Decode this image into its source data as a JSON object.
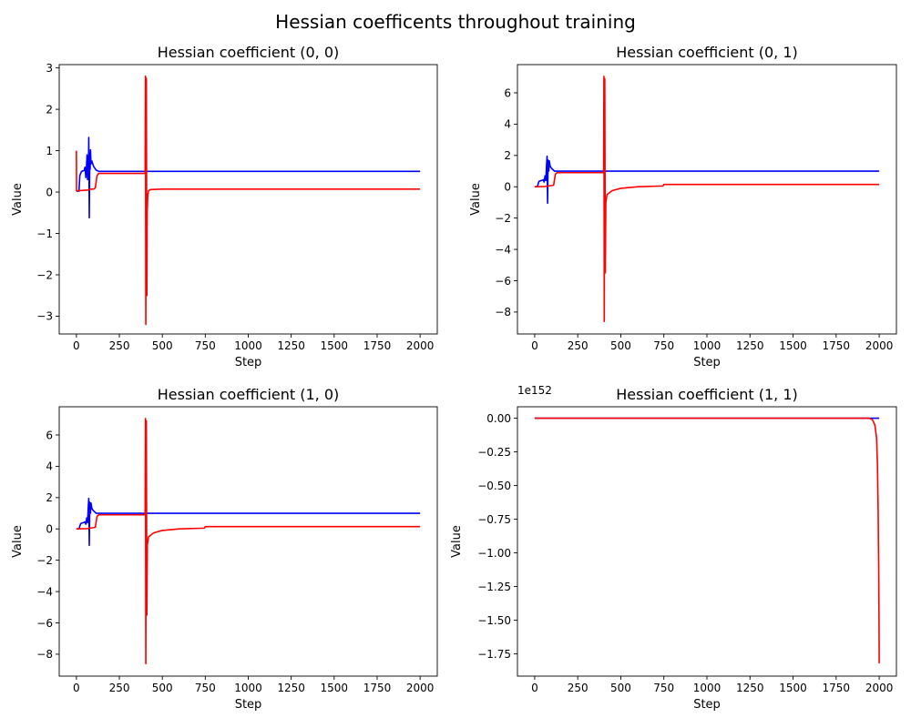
{
  "figure": {
    "suptitle": "Hessian coefficents throughout training"
  },
  "chart_data": [
    {
      "type": "line",
      "title": "Hessian coefficient (0, 0)",
      "xlabel": "Step",
      "ylabel": "Value",
      "offset_text": "",
      "xlim": [
        -100,
        2100
      ],
      "ylim": [
        -3.43,
        3.08
      ],
      "xticks": [
        0,
        250,
        500,
        750,
        1000,
        1250,
        1500,
        1750,
        2000
      ],
      "xtick_labels": [
        "0",
        "250",
        "500",
        "750",
        "1000",
        "1250",
        "1500",
        "1750",
        "2000"
      ],
      "yticks": [
        -3,
        -2,
        -1,
        0,
        1,
        2,
        3
      ],
      "ytick_labels": [
        "−3",
        "−2",
        "−1",
        "0",
        "1",
        "2",
        "3"
      ],
      "series": [
        {
          "color": "#0000ff",
          "points": [
            [
              0,
              0.02
            ],
            [
              15,
              0.02
            ],
            [
              20,
              0.4
            ],
            [
              30,
              0.5
            ],
            [
              45,
              0.52
            ],
            [
              50,
              0.6
            ],
            [
              55,
              0.35
            ],
            [
              58,
              0.55
            ],
            [
              62,
              0.9
            ],
            [
              65,
              0.3
            ],
            [
              68,
              0.75
            ],
            [
              70,
              0.5
            ],
            [
              72,
              1.32
            ],
            [
              75,
              -0.62
            ],
            [
              78,
              0.95
            ],
            [
              80,
              0.55
            ],
            [
              82,
              1.02
            ],
            [
              85,
              0.68
            ],
            [
              90,
              0.75
            ],
            [
              100,
              0.62
            ],
            [
              115,
              0.53
            ],
            [
              130,
              0.5
            ],
            [
              200,
              0.5
            ],
            [
              400,
              0.5
            ],
            [
              2000,
              0.5
            ]
          ]
        },
        {
          "color": "#ff0000",
          "points": [
            [
              0,
              1.0
            ],
            [
              1,
              0.03
            ],
            [
              70,
              0.05
            ],
            [
              80,
              0.07
            ],
            [
              100,
              0.07
            ],
            [
              110,
              0.1
            ],
            [
              120,
              0.4
            ],
            [
              130,
              0.45
            ],
            [
              300,
              0.45
            ],
            [
              400,
              0.45
            ],
            [
              402,
              2.8
            ],
            [
              404,
              -3.2
            ],
            [
              407,
              2.75
            ],
            [
              410,
              -2.5
            ],
            [
              412,
              -0.5
            ],
            [
              415,
              -0.1
            ],
            [
              420,
              0.03
            ],
            [
              430,
              0.06
            ],
            [
              500,
              0.07
            ],
            [
              2000,
              0.07
            ]
          ]
        }
      ]
    },
    {
      "type": "line",
      "title": "Hessian coefficient (0, 1)",
      "xlabel": "Step",
      "ylabel": "Value",
      "offset_text": "",
      "xlim": [
        -100,
        2100
      ],
      "ylim": [
        -9.4,
        7.8
      ],
      "xticks": [
        0,
        250,
        500,
        750,
        1000,
        1250,
        1500,
        1750,
        2000
      ],
      "xtick_labels": [
        "0",
        "250",
        "500",
        "750",
        "1000",
        "1250",
        "1500",
        "1750",
        "2000"
      ],
      "yticks": [
        -8,
        -6,
        -4,
        -2,
        0,
        2,
        4,
        6
      ],
      "ytick_labels": [
        "−8",
        "−6",
        "−4",
        "−2",
        "0",
        "2",
        "4",
        "6"
      ],
      "series": [
        {
          "color": "#0000ff",
          "points": [
            [
              0,
              0.0
            ],
            [
              15,
              0.0
            ],
            [
              25,
              0.35
            ],
            [
              40,
              0.4
            ],
            [
              50,
              0.45
            ],
            [
              55,
              0.3
            ],
            [
              60,
              0.7
            ],
            [
              65,
              0.4
            ],
            [
              68,
              1.2
            ],
            [
              72,
              1.95
            ],
            [
              75,
              -1.05
            ],
            [
              78,
              1.7
            ],
            [
              82,
              1.0
            ],
            [
              85,
              1.65
            ],
            [
              90,
              1.3
            ],
            [
              100,
              1.15
            ],
            [
              115,
              1.0
            ],
            [
              200,
              1.0
            ],
            [
              400,
              1.0
            ],
            [
              2000,
              1.0
            ]
          ]
        },
        {
          "color": "#ff0000",
          "points": [
            [
              0,
              0.0
            ],
            [
              60,
              0.02
            ],
            [
              80,
              0.05
            ],
            [
              110,
              0.1
            ],
            [
              120,
              0.8
            ],
            [
              130,
              0.9
            ],
            [
              400,
              0.9
            ],
            [
              402,
              7.05
            ],
            [
              404,
              -8.6
            ],
            [
              407,
              6.9
            ],
            [
              410,
              -5.5
            ],
            [
              413,
              -1.0
            ],
            [
              420,
              -0.5
            ],
            [
              450,
              -0.25
            ],
            [
              500,
              -0.1
            ],
            [
              600,
              0.0
            ],
            [
              745,
              0.05
            ],
            [
              750,
              0.15
            ],
            [
              1000,
              0.15
            ],
            [
              2000,
              0.15
            ]
          ]
        }
      ]
    },
    {
      "type": "line",
      "title": "Hessian coefficient (1, 0)",
      "xlabel": "Step",
      "ylabel": "Value",
      "offset_text": "",
      "xlim": [
        -100,
        2100
      ],
      "ylim": [
        -9.4,
        7.8
      ],
      "xticks": [
        0,
        250,
        500,
        750,
        1000,
        1250,
        1500,
        1750,
        2000
      ],
      "xtick_labels": [
        "0",
        "250",
        "500",
        "750",
        "1000",
        "1250",
        "1500",
        "1750",
        "2000"
      ],
      "yticks": [
        -8,
        -6,
        -4,
        -2,
        0,
        2,
        4,
        6
      ],
      "ytick_labels": [
        "−8",
        "−6",
        "−4",
        "−2",
        "0",
        "2",
        "4",
        "6"
      ],
      "series": [
        {
          "color": "#0000ff",
          "points": [
            [
              0,
              0.0
            ],
            [
              15,
              0.0
            ],
            [
              25,
              0.35
            ],
            [
              40,
              0.4
            ],
            [
              50,
              0.45
            ],
            [
              55,
              0.3
            ],
            [
              60,
              0.7
            ],
            [
              65,
              0.4
            ],
            [
              68,
              1.2
            ],
            [
              72,
              1.95
            ],
            [
              75,
              -1.05
            ],
            [
              78,
              1.7
            ],
            [
              82,
              1.0
            ],
            [
              85,
              1.65
            ],
            [
              90,
              1.3
            ],
            [
              100,
              1.15
            ],
            [
              115,
              1.0
            ],
            [
              200,
              1.0
            ],
            [
              400,
              1.0
            ],
            [
              2000,
              1.0
            ]
          ]
        },
        {
          "color": "#ff0000",
          "points": [
            [
              0,
              0.0
            ],
            [
              60,
              0.02
            ],
            [
              80,
              0.05
            ],
            [
              110,
              0.1
            ],
            [
              120,
              0.8
            ],
            [
              130,
              0.9
            ],
            [
              400,
              0.9
            ],
            [
              402,
              7.05
            ],
            [
              404,
              -8.6
            ],
            [
              407,
              6.9
            ],
            [
              410,
              -5.5
            ],
            [
              413,
              -1.0
            ],
            [
              420,
              -0.5
            ],
            [
              450,
              -0.25
            ],
            [
              500,
              -0.1
            ],
            [
              600,
              0.0
            ],
            [
              745,
              0.05
            ],
            [
              750,
              0.15
            ],
            [
              1000,
              0.15
            ],
            [
              2000,
              0.15
            ]
          ]
        }
      ]
    },
    {
      "type": "line",
      "title": "Hessian coefficient (1, 1)",
      "xlabel": "Step",
      "ylabel": "Value",
      "offset_text": "1e152",
      "xlim": [
        -100,
        2100
      ],
      "ylim": [
        -1.915,
        0.085
      ],
      "xticks": [
        0,
        250,
        500,
        750,
        1000,
        1250,
        1500,
        1750,
        2000
      ],
      "xtick_labels": [
        "0",
        "250",
        "500",
        "750",
        "1000",
        "1250",
        "1500",
        "1750",
        "2000"
      ],
      "yticks": [
        -1.75,
        -1.5,
        -1.25,
        -1.0,
        -0.75,
        -0.5,
        -0.25,
        0.0
      ],
      "ytick_labels": [
        "−1.75",
        "−1.50",
        "−1.25",
        "−1.00",
        "−0.75",
        "−0.50",
        "−0.25",
        "0.00"
      ],
      "series": [
        {
          "color": "#0000ff",
          "points": [
            [
              0,
              0.0
            ],
            [
              2000,
              0.0
            ]
          ]
        },
        {
          "color": "#ff0000",
          "points": [
            [
              0,
              0.0
            ],
            [
              1940,
              0.0
            ],
            [
              1960,
              -0.01
            ],
            [
              1975,
              -0.05
            ],
            [
              1985,
              -0.15
            ],
            [
              1990,
              -0.35
            ],
            [
              1994,
              -0.7
            ],
            [
              1997,
              -1.1
            ],
            [
              1999,
              -1.5
            ],
            [
              2000,
              -1.82
            ]
          ]
        }
      ]
    }
  ]
}
